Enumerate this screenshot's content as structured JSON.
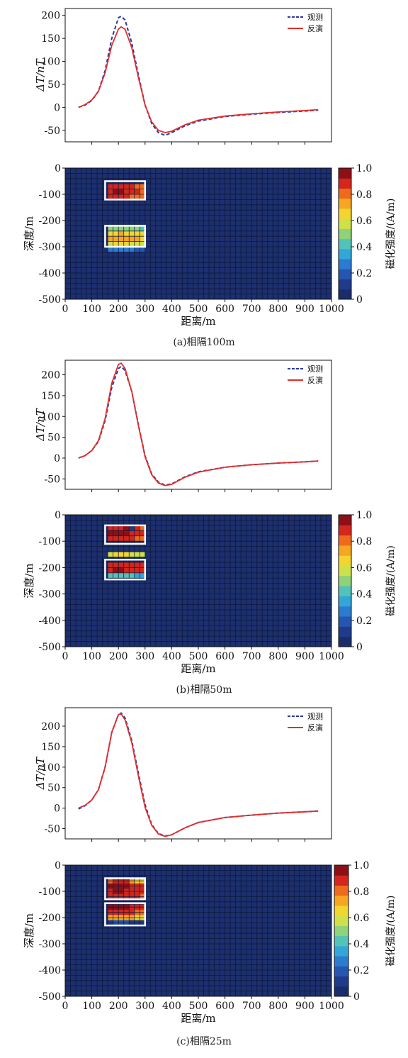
{
  "figure": {
    "colorbar": {
      "label": "磁化强度/(A/m)",
      "ticks": [
        "0",
        "0.2",
        "0.4",
        "0.6",
        "0.8",
        "1.0"
      ],
      "colors": [
        "#1a2d6b",
        "#203a8c",
        "#2556b0",
        "#2b7cd0",
        "#32a6d8",
        "#52c3b8",
        "#8fd27a",
        "#cfe04a",
        "#f2d531",
        "#f7a623",
        "#ee6a1d",
        "#d3261c",
        "#8f0f16"
      ]
    },
    "legend": {
      "observed": "观测",
      "inverted": "反演"
    },
    "line_colors": {
      "observed": "#2b3a9a",
      "inverted": "#e0302c"
    }
  },
  "chart_data": [
    {
      "id": "a",
      "caption": "(a)相隔100m",
      "profile": {
        "type": "line",
        "ylabel": "ΔT/nT",
        "yticks": [
          "200",
          "150",
          "100",
          "50",
          "0",
          "-50"
        ],
        "ylim": [
          -75,
          215
        ],
        "xlim": [
          0,
          1000
        ],
        "x": [
          50,
          75,
          100,
          125,
          150,
          175,
          200,
          210,
          225,
          250,
          275,
          300,
          325,
          350,
          375,
          400,
          450,
          500,
          600,
          700,
          800,
          900,
          950
        ],
        "series": [
          {
            "name": "观测",
            "style": "dashed",
            "values": [
              0,
              5,
              15,
              35,
              80,
              150,
              195,
              198,
              190,
              140,
              70,
              5,
              -35,
              -55,
              -61,
              -55,
              -40,
              -30,
              -20,
              -15,
              -11,
              -8,
              -6
            ]
          },
          {
            "name": "反演",
            "style": "solid",
            "values": [
              0,
              6,
              16,
              35,
              75,
              135,
              170,
              175,
              170,
              130,
              65,
              5,
              -32,
              -50,
              -55,
              -52,
              -38,
              -28,
              -19,
              -14,
              -10,
              -7,
              -5
            ]
          }
        ]
      },
      "section": {
        "type": "heatmap",
        "xlabel": "距离/m",
        "ylabel": "深度/m",
        "xticks": [
          "0",
          "100",
          "200",
          "300",
          "400",
          "500",
          "600",
          "700",
          "800",
          "900",
          "1000"
        ],
        "yticks": [
          "0",
          "-100",
          "-200",
          "-300",
          "-400",
          "-500"
        ],
        "xlim": [
          0,
          1000
        ],
        "ylim": [
          -500,
          0
        ],
        "cell_size": 20,
        "boxes": [
          {
            "x": [
              150,
              300
            ],
            "y": [
              -120,
              -50
            ]
          },
          {
            "x": [
              150,
              300
            ],
            "y": [
              -300,
              -220
            ]
          }
        ],
        "anomalies": [
          {
            "x0": 160,
            "y_top": -60,
            "values": [
              [
                0.88,
                0.9,
                0.92,
                0.9,
                0.88,
                0.85,
                0.82
              ],
              [
                0.95,
                0.97,
                0.97,
                0.95,
                0.92,
                0.88,
                0.85
              ],
              [
                0.9,
                0.92,
                0.93,
                0.9,
                0.87,
                0.84,
                0.82
              ]
            ]
          },
          {
            "x0": 160,
            "y_top": -220,
            "values": [
              [
                0.48,
                0.5,
                0.52,
                0.5,
                0.48,
                0.46,
                0.45
              ],
              [
                0.68,
                0.7,
                0.72,
                0.7,
                0.68,
                0.66,
                0.64
              ],
              [
                0.76,
                0.78,
                0.78,
                0.76,
                0.74,
                0.72,
                0.7
              ],
              [
                0.62,
                0.64,
                0.65,
                0.64,
                0.62,
                0.6,
                0.58
              ],
              [
                0.22,
                0.24,
                0.25,
                0.24,
                0.22,
                0.2,
                0.18
              ]
            ]
          }
        ]
      }
    },
    {
      "id": "b",
      "caption": "(b)相隔50m",
      "profile": {
        "type": "line",
        "ylabel": "ΔT/nT",
        "yticks": [
          "200",
          "150",
          "100",
          "50",
          "0",
          "-50"
        ],
        "ylim": [
          -75,
          235
        ],
        "xlim": [
          0,
          1000
        ],
        "x": [
          50,
          75,
          100,
          125,
          150,
          175,
          200,
          210,
          225,
          250,
          275,
          300,
          325,
          350,
          375,
          400,
          450,
          500,
          600,
          700,
          800,
          900,
          950
        ],
        "series": [
          {
            "name": "观测",
            "style": "dashed",
            "values": [
              0,
              6,
              18,
              40,
              90,
              170,
              215,
              220,
              210,
              160,
              80,
              5,
              -38,
              -58,
              -65,
              -62,
              -45,
              -33,
              -22,
              -16,
              -12,
              -9,
              -7
            ]
          },
          {
            "name": "反演",
            "style": "solid",
            "values": [
              0,
              6,
              18,
              42,
              95,
              180,
              225,
              228,
              215,
              160,
              78,
              3,
              -40,
              -60,
              -66,
              -63,
              -46,
              -34,
              -22,
              -16,
              -12,
              -9,
              -7
            ]
          }
        ]
      },
      "section": {
        "type": "heatmap",
        "xlabel": "距离/m",
        "ylabel": "深度/m",
        "xticks": [
          "0",
          "100",
          "200",
          "300",
          "400",
          "500",
          "600",
          "700",
          "800",
          "900",
          "1000"
        ],
        "yticks": [
          "0",
          "-100",
          "-200",
          "-300",
          "-400",
          "-500"
        ],
        "xlim": [
          0,
          1000
        ],
        "ylim": [
          -500,
          0
        ],
        "cell_size": 20,
        "boxes": [
          {
            "x": [
              150,
              300
            ],
            "y": [
              -110,
              -40
            ]
          },
          {
            "x": [
              150,
              300
            ],
            "y": [
              -245,
              -170
            ]
          }
        ],
        "anomalies": [
          {
            "x0": 160,
            "y_top": -40,
            "values": [
              [
                0.9,
                0.92,
                0.95,
                0.96,
                0.05,
                0.9,
                0.85
              ],
              [
                0.97,
                0.98,
                0.98,
                0.97,
                0.95,
                0.92,
                0.88
              ],
              [
                0.92,
                0.94,
                0.94,
                0.93,
                0.9,
                0.87,
                0.84
              ]
            ]
          },
          {
            "x0": 160,
            "y_top": -140,
            "values": [
              [
                0.62,
                0.64,
                0.66,
                0.64,
                0.62,
                0.6,
                0.58
              ],
              [
                0.0,
                0.0,
                0.0,
                0.0,
                0.0,
                0.0,
                0.0
              ],
              [
                0.92,
                0.94,
                0.95,
                0.94,
                0.92,
                0.9,
                0.88
              ],
              [
                0.95,
                0.96,
                0.96,
                0.95,
                0.93,
                0.91,
                0.89
              ],
              [
                0.38,
                0.4,
                0.42,
                0.41,
                0.39,
                0.37,
                0.36
              ]
            ]
          }
        ]
      }
    },
    {
      "id": "c",
      "caption": "(c)相隔25m",
      "profile": {
        "type": "line",
        "ylabel": "ΔT/nT",
        "yticks": [
          "200",
          "150",
          "100",
          "50",
          "0",
          "-50"
        ],
        "ylim": [
          -75,
          245
        ],
        "xlim": [
          0,
          1000
        ],
        "x": [
          50,
          75,
          100,
          125,
          150,
          175,
          200,
          210,
          225,
          250,
          275,
          300,
          325,
          350,
          375,
          400,
          450,
          500,
          600,
          700,
          800,
          900,
          950
        ],
        "series": [
          {
            "name": "观测",
            "style": "dashed",
            "values": [
              -2,
              6,
              20,
              45,
              100,
              185,
              228,
              232,
              220,
              165,
              85,
              8,
              -40,
              -62,
              -68,
              -65,
              -48,
              -35,
              -23,
              -17,
              -12,
              -9,
              -7
            ]
          },
          {
            "name": "反演",
            "style": "solid",
            "values": [
              0,
              7,
              20,
              45,
              100,
              185,
              228,
              230,
              215,
              160,
              78,
              2,
              -42,
              -63,
              -69,
              -65,
              -48,
              -35,
              -23,
              -17,
              -12,
              -9,
              -7
            ]
          }
        ]
      },
      "section": {
        "type": "heatmap",
        "xlabel": "距离/m",
        "ylabel": "深度/m",
        "xticks": [
          "0",
          "100",
          "200",
          "300",
          "400",
          "500",
          "600",
          "700",
          "800",
          "900",
          "1000"
        ],
        "yticks": [
          "0",
          "-100",
          "-200",
          "-300",
          "-400",
          "-500"
        ],
        "xlim": [
          0,
          1000
        ],
        "ylim": [
          -500,
          0
        ],
        "cell_size": 20,
        "boxes": [
          {
            "x": [
              150,
              300
            ],
            "y": [
              -130,
              -50
            ]
          },
          {
            "x": [
              150,
              300
            ],
            "y": [
              -230,
              -145
            ]
          }
        ],
        "anomalies": [
          {
            "x0": 160,
            "y_top": -50,
            "values": [
              [
                0.85,
                0.9,
                0.92,
                0.9,
                0.75,
                0.7,
                0.65
              ],
              [
                0.97,
                0.98,
                0.98,
                0.97,
                0.95,
                0.92,
                0.9
              ],
              [
                0.95,
                0.96,
                0.96,
                0.95,
                0.93,
                0.9,
                0.88
              ],
              [
                0.9,
                0.92,
                0.93,
                0.92,
                0.9,
                0.88,
                0.86
              ]
            ]
          },
          {
            "x0": 160,
            "y_top": -150,
            "values": [
              [
                0.96,
                0.97,
                0.97,
                0.96,
                0.94,
                0.92,
                0.9
              ],
              [
                0.88,
                0.9,
                0.92,
                0.9,
                0.88,
                0.86,
                0.84
              ],
              [
                0.72,
                0.74,
                0.75,
                0.74,
                0.72,
                0.7,
                0.68
              ],
              [
                0.12,
                0.14,
                0.15,
                0.14,
                0.12,
                0.1,
                0.08
              ]
            ]
          }
        ]
      }
    }
  ]
}
